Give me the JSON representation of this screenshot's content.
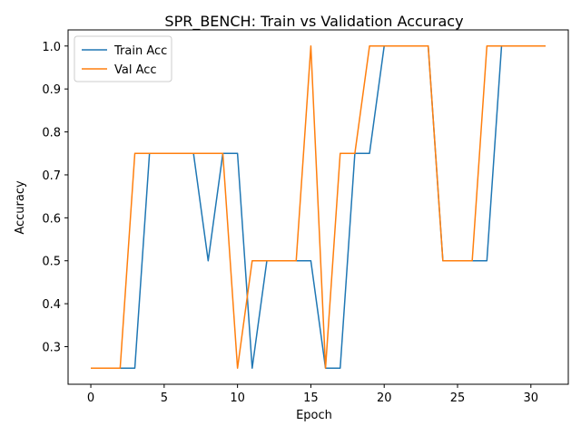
{
  "chart_data": {
    "type": "line",
    "title": "SPR_BENCH: Train vs Validation Accuracy",
    "xlabel": "Epoch",
    "ylabel": "Accuracy",
    "xlim": [
      -1.55,
      32.55
    ],
    "ylim": [
      0.2125,
      1.0375
    ],
    "xticks": [
      0,
      5,
      10,
      15,
      20,
      25,
      30
    ],
    "yticks": [
      0.3,
      0.4,
      0.5,
      0.6,
      0.7,
      0.8,
      0.9,
      1.0
    ],
    "ytick_labels": [
      "0.3",
      "0.4",
      "0.5",
      "0.6",
      "0.7",
      "0.8",
      "0.9",
      "1.0"
    ],
    "grid": false,
    "legend_position": "upper-left",
    "x": [
      0,
      1,
      2,
      3,
      4,
      5,
      6,
      7,
      8,
      9,
      10,
      11,
      12,
      13,
      14,
      15,
      16,
      17,
      18,
      19,
      20,
      21,
      22,
      23,
      24,
      25,
      26,
      27,
      28,
      29,
      30,
      31
    ],
    "series": [
      {
        "name": "Train Acc",
        "color": "#1f77b4",
        "values": [
          0.25,
          0.25,
          0.25,
          0.25,
          0.75,
          0.75,
          0.75,
          0.75,
          0.5,
          0.75,
          0.75,
          0.25,
          0.5,
          0.5,
          0.5,
          0.5,
          0.25,
          0.25,
          0.75,
          0.75,
          1.0,
          1.0,
          1.0,
          1.0,
          0.5,
          0.5,
          0.5,
          0.5,
          1.0,
          1.0,
          1.0,
          1.0
        ]
      },
      {
        "name": "Val Acc",
        "color": "#ff7f0e",
        "values": [
          0.25,
          0.25,
          0.25,
          0.75,
          0.75,
          0.75,
          0.75,
          0.75,
          0.75,
          0.75,
          0.25,
          0.5,
          0.5,
          0.5,
          0.5,
          1.0,
          0.25,
          0.75,
          0.75,
          1.0,
          1.0,
          1.0,
          1.0,
          1.0,
          0.5,
          0.5,
          0.5,
          1.0,
          1.0,
          1.0,
          1.0,
          1.0
        ]
      }
    ]
  }
}
